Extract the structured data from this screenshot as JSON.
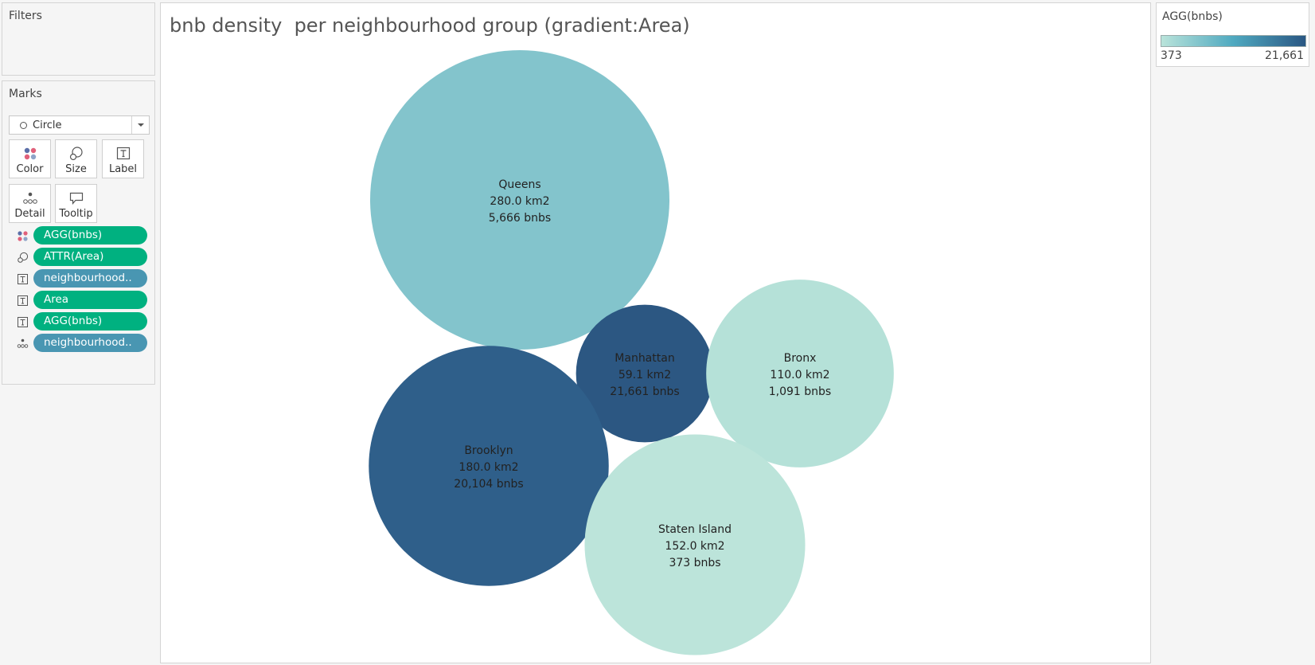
{
  "filters": {
    "title": "Filters"
  },
  "marks": {
    "title": "Marks",
    "mark_type": "Circle",
    "buttons": {
      "color": "Color",
      "size": "Size",
      "label": "Label",
      "detail": "Detail",
      "tooltip": "Tooltip"
    },
    "shelf": [
      {
        "icon": "color-icon",
        "label": "AGG(bnbs)",
        "kind": "measure"
      },
      {
        "icon": "size-icon",
        "label": "ATTR(Area)",
        "kind": "measure"
      },
      {
        "icon": "label-icon",
        "label": "neighbourhood..",
        "kind": "dimension"
      },
      {
        "icon": "label-icon",
        "label": "Area",
        "kind": "measure"
      },
      {
        "icon": "label-icon",
        "label": "AGG(bnbs)",
        "kind": "measure"
      },
      {
        "icon": "detail-icon",
        "label": "neighbourhood..",
        "kind": "dimension"
      }
    ]
  },
  "legend": {
    "title": "AGG(bnbs)",
    "min_label": "373",
    "max_label": "21,661",
    "min_color": "#b9e3da",
    "mid_color": "#4fa9c0",
    "max_color": "#2a5783"
  },
  "chart_data": {
    "type": "packed-bubble",
    "title": "bnb density  per neighbourhood group (gradient:Area)",
    "size_field": "Area",
    "color_field": "AGG(bnbs)",
    "color_range": [
      373,
      21661
    ],
    "bubbles": [
      {
        "name": "Queens",
        "area_label": "280.0 km2",
        "bnbs_label": "5,666 bnbs",
        "area": 280.0,
        "bnbs": 5666,
        "color": "#83c4cc"
      },
      {
        "name": "Manhattan",
        "area_label": "59.1 km2",
        "bnbs_label": "21,661 bnbs",
        "area": 59.1,
        "bnbs": 21661,
        "color": "#2c5782"
      },
      {
        "name": "Bronx",
        "area_label": "110.0 km2",
        "bnbs_label": "1,091 bnbs",
        "area": 110.0,
        "bnbs": 1091,
        "color": "#b5e1d8"
      },
      {
        "name": "Brooklyn",
        "area_label": "180.0 km2",
        "bnbs_label": "20,104 bnbs",
        "area": 180.0,
        "bnbs": 20104,
        "color": "#2f5f8a"
      },
      {
        "name": "Staten Island",
        "area_label": "152.0 km2",
        "bnbs_label": "373 bnbs",
        "area": 152.0,
        "bnbs": 373,
        "color": "#bce4da"
      }
    ]
  }
}
